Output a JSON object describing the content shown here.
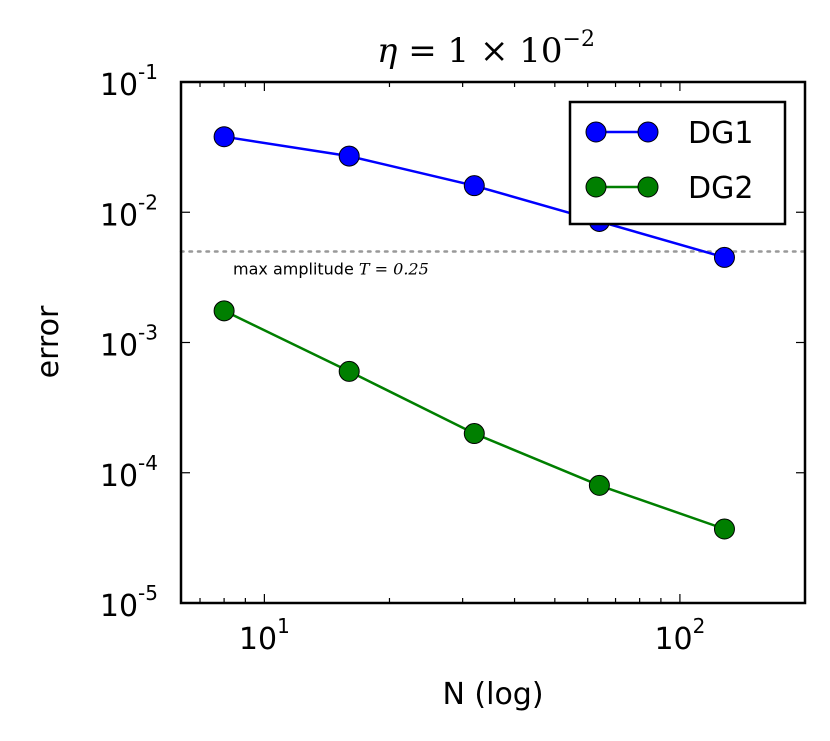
{
  "chart_data": {
    "type": "line",
    "title": "η = 1 × 10⁻²",
    "title_parts": {
      "lhs": "η",
      "eq": "=",
      "coef": "1",
      "times": "×",
      "base": "10",
      "exp": "−2"
    },
    "xlabel": "N (log)",
    "ylabel": "error",
    "xscale": "log",
    "yscale": "log",
    "xlim": [
      6.3,
      200
    ],
    "ylim": [
      1e-05,
      0.1
    ],
    "xticks": [
      {
        "value": 10,
        "base": "10",
        "exp": "1"
      },
      {
        "value": 100,
        "base": "10",
        "exp": "2"
      }
    ],
    "yticks": [
      {
        "value": 0.1,
        "base": "10",
        "exp": "-1"
      },
      {
        "value": 0.01,
        "base": "10",
        "exp": "-2"
      },
      {
        "value": 0.001,
        "base": "10",
        "exp": "-3"
      },
      {
        "value": 0.0001,
        "base": "10",
        "exp": "-4"
      },
      {
        "value": 1e-05,
        "base": "10",
        "exp": "-5"
      }
    ],
    "series": [
      {
        "name": "DG1",
        "color": "#0000ff",
        "x": [
          8,
          16,
          32,
          64,
          128
        ],
        "y": [
          0.038,
          0.027,
          0.016,
          0.0085,
          0.0045
        ]
      },
      {
        "name": "DG2",
        "color": "#007f00",
        "x": [
          8,
          16,
          32,
          64,
          128
        ],
        "y": [
          0.00175,
          0.0006,
          0.0002,
          8e-05,
          3.7e-05
        ]
      }
    ],
    "reference_line": {
      "y": 0.005,
      "color": "#999999",
      "style": "dotted",
      "label_text": "max amplitude",
      "label_math": "T = 0.25"
    },
    "legend": {
      "position": "top-right"
    },
    "grid": false
  }
}
